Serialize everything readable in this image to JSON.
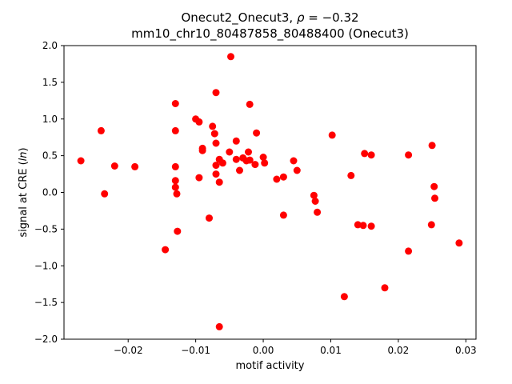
{
  "chart_data": {
    "type": "scatter",
    "title_prefix": "Onecut2_Onecut3, ",
    "title_rho": "ρ",
    "title_suffix": " = −0.32",
    "title_line2": "mm10_chr10_80487858_80488400 (Onecut3)",
    "xlabel": "motif activity",
    "ylabel_prefix": "signal at CRE (",
    "ylabel_italic": "ln",
    "ylabel_suffix": ")",
    "marker_color": "#ff0000",
    "frame_color": "#000000",
    "xlim": [
      -0.0295,
      0.0315
    ],
    "ylim": [
      -2.0,
      2.0
    ],
    "xticks": [
      -0.02,
      -0.01,
      0.0,
      0.01,
      0.02,
      0.03
    ],
    "xtick_labels": [
      "−0.02",
      "−0.01",
      "0.00",
      "0.01",
      "0.02",
      "0.03"
    ],
    "yticks": [
      -2.0,
      -1.5,
      -1.0,
      -0.5,
      0.0,
      0.5,
      1.0,
      1.5,
      2.0
    ],
    "ytick_labels": [
      "−2.0",
      "−1.5",
      "−1.0",
      "−0.5",
      "0.0",
      "0.5",
      "1.0",
      "1.5",
      "2.0"
    ],
    "points": [
      [
        -0.027,
        0.43
      ],
      [
        -0.024,
        0.84
      ],
      [
        -0.0235,
        -0.02
      ],
      [
        -0.022,
        0.36
      ],
      [
        -0.019,
        0.35
      ],
      [
        -0.0145,
        -0.78
      ],
      [
        -0.013,
        1.21
      ],
      [
        -0.013,
        0.84
      ],
      [
        -0.013,
        0.35
      ],
      [
        -0.013,
        0.16
      ],
      [
        -0.013,
        0.07
      ],
      [
        -0.0128,
        -0.02
      ],
      [
        -0.0127,
        -0.53
      ],
      [
        -0.01,
        1.0
      ],
      [
        -0.0095,
        0.96
      ],
      [
        -0.009,
        0.6
      ],
      [
        -0.009,
        0.57
      ],
      [
        -0.0095,
        0.2
      ],
      [
        -0.008,
        -0.35
      ],
      [
        -0.0075,
        0.9
      ],
      [
        -0.007,
        1.36
      ],
      [
        -0.0072,
        0.8
      ],
      [
        -0.007,
        0.67
      ],
      [
        -0.0065,
        0.45
      ],
      [
        -0.007,
        0.37
      ],
      [
        -0.007,
        0.25
      ],
      [
        -0.0065,
        0.14
      ],
      [
        -0.006,
        0.4
      ],
      [
        -0.0065,
        -1.83
      ],
      [
        -0.0048,
        1.85
      ],
      [
        -0.005,
        0.55
      ],
      [
        -0.004,
        0.7
      ],
      [
        -0.004,
        0.45
      ],
      [
        -0.0035,
        0.3
      ],
      [
        -0.003,
        0.47
      ],
      [
        -0.0025,
        0.43
      ],
      [
        -0.002,
        1.2
      ],
      [
        -0.0022,
        0.55
      ],
      [
        -0.002,
        0.44
      ],
      [
        -0.001,
        0.81
      ],
      [
        -0.0012,
        0.38
      ],
      [
        0.0,
        0.48
      ],
      [
        0.0002,
        0.4
      ],
      [
        0.002,
        0.18
      ],
      [
        0.003,
        0.21
      ],
      [
        0.003,
        -0.31
      ],
      [
        0.0045,
        0.43
      ],
      [
        0.005,
        0.3
      ],
      [
        0.0075,
        -0.04
      ],
      [
        0.0077,
        -0.12
      ],
      [
        0.008,
        -0.27
      ],
      [
        0.0102,
        0.78
      ],
      [
        0.012,
        -1.42
      ],
      [
        0.013,
        0.23
      ],
      [
        0.014,
        -0.44
      ],
      [
        0.0148,
        -0.45
      ],
      [
        0.015,
        0.53
      ],
      [
        0.016,
        0.51
      ],
      [
        0.016,
        -0.46
      ],
      [
        0.018,
        -1.3
      ],
      [
        0.0215,
        0.51
      ],
      [
        0.0215,
        -0.8
      ],
      [
        0.025,
        0.64
      ],
      [
        0.0249,
        -0.44
      ],
      [
        0.0253,
        0.08
      ],
      [
        0.0254,
        -0.08
      ],
      [
        0.029,
        -0.69
      ]
    ]
  }
}
